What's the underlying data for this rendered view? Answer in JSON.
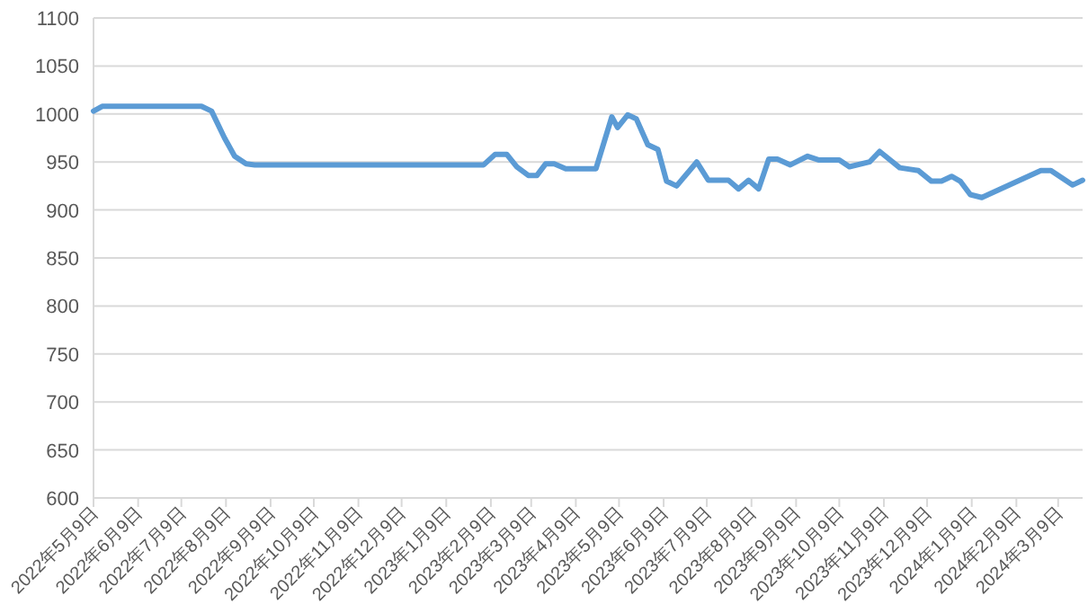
{
  "chart_data": {
    "type": "line",
    "x": [
      "2022-05-09",
      "2022-05-15",
      "2022-07-23",
      "2022-07-30",
      "2022-08-08",
      "2022-08-15",
      "2022-08-23",
      "2022-08-29",
      "2023-02-04",
      "2023-02-12",
      "2023-02-20",
      "2023-02-27",
      "2023-03-07",
      "2023-03-13",
      "2023-03-19",
      "2023-03-25",
      "2023-04-02",
      "2023-04-23",
      "2023-05-04",
      "2023-05-08",
      "2023-05-15",
      "2023-05-21",
      "2023-05-29",
      "2023-06-05",
      "2023-06-11",
      "2023-06-18",
      "2023-07-02",
      "2023-07-10",
      "2023-07-24",
      "2023-07-31",
      "2023-08-07",
      "2023-08-14",
      "2023-08-21",
      "2023-08-27",
      "2023-09-05",
      "2023-09-17",
      "2023-09-25",
      "2023-10-09",
      "2023-10-16",
      "2023-10-30",
      "2023-11-06",
      "2023-11-20",
      "2023-12-03",
      "2023-12-12",
      "2023-12-19",
      "2023-12-26",
      "2024-01-01",
      "2024-01-08",
      "2024-01-16",
      "2024-02-26",
      "2024-03-04",
      "2024-03-19",
      "2024-03-26"
    ],
    "series": [
      {
        "color": "#5b9bd5",
        "values": [
          1003,
          1008,
          1008,
          1003,
          975,
          956,
          948,
          947,
          947,
          958,
          958,
          945,
          936,
          936,
          948,
          948,
          943,
          943,
          997,
          986,
          999,
          995,
          968,
          963,
          930,
          925,
          950,
          931,
          931,
          922,
          931,
          922,
          953,
          953,
          947,
          956,
          952,
          952,
          945,
          950,
          961,
          944,
          941,
          930,
          930,
          935,
          930,
          916,
          913,
          941,
          941,
          926,
          931
        ]
      }
    ],
    "xlim": [
      "2022-05-09",
      "2024-03-26"
    ],
    "ylim": [
      600,
      1100
    ],
    "yticks": [
      600,
      650,
      700,
      750,
      800,
      850,
      900,
      950,
      1000,
      1050,
      1100
    ],
    "xticks": [
      {
        "value": "2022-05-09",
        "label": "2022年5月9日"
      },
      {
        "value": "2022-06-09",
        "label": "2022年6月9日"
      },
      {
        "value": "2022-07-09",
        "label": "2022年7月9日"
      },
      {
        "value": "2022-08-09",
        "label": "2022年8月9日"
      },
      {
        "value": "2022-09-09",
        "label": "2022年9月9日"
      },
      {
        "value": "2022-10-09",
        "label": "2022年10月9日"
      },
      {
        "value": "2022-11-09",
        "label": "2022年11月9日"
      },
      {
        "value": "2022-12-09",
        "label": "2022年12月9日"
      },
      {
        "value": "2023-01-09",
        "label": "2023年1月9日"
      },
      {
        "value": "2023-02-09",
        "label": "2023年2月9日"
      },
      {
        "value": "2023-03-09",
        "label": "2023年3月9日"
      },
      {
        "value": "2023-04-09",
        "label": "2023年4月9日"
      },
      {
        "value": "2023-05-09",
        "label": "2023年5月9日"
      },
      {
        "value": "2023-06-09",
        "label": "2023年6月9日"
      },
      {
        "value": "2023-07-09",
        "label": "2023年7月9日"
      },
      {
        "value": "2023-08-09",
        "label": "2023年8月9日"
      },
      {
        "value": "2023-09-09",
        "label": "2023年9月9日"
      },
      {
        "value": "2023-10-09",
        "label": "2023年10月9日"
      },
      {
        "value": "2023-11-09",
        "label": "2023年11月9日"
      },
      {
        "value": "2023-12-09",
        "label": "2023年12月9日"
      },
      {
        "value": "2024-01-09",
        "label": "2024年1月9日"
      },
      {
        "value": "2024-02-09",
        "label": "2024年2月9日"
      },
      {
        "value": "2024-03-09",
        "label": "2024年3月9日"
      }
    ],
    "grid": "y",
    "marker": "none",
    "line_style": "solid"
  }
}
